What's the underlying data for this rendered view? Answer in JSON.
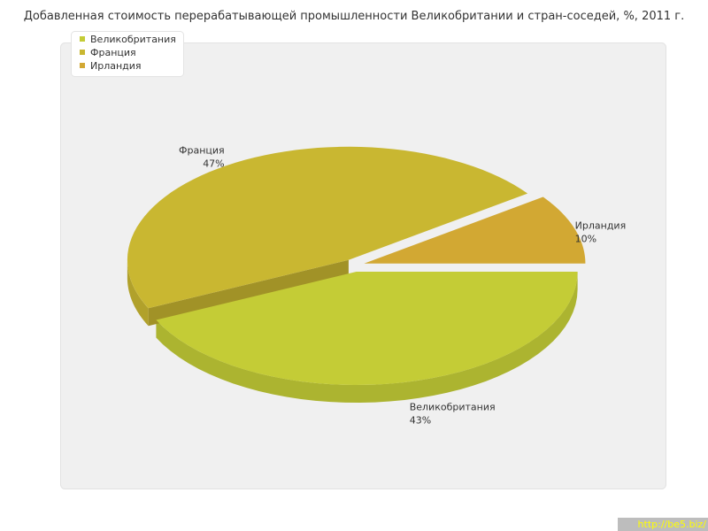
{
  "chart_data": {
    "type": "pie",
    "title": "Добавленная стоимость перерабатывающей промышленности Великобритании и стран-соседей, %, 2011 г.",
    "categories": [
      "Ирландия",
      "Франция",
      "Великобритания"
    ],
    "values": [
      10,
      47,
      43
    ],
    "value_labels": [
      "10%",
      "47%",
      "43%"
    ],
    "colors": [
      "#d2a833",
      "#c9b731",
      "#c4cc36"
    ],
    "legend_order": [
      2,
      1,
      0
    ],
    "legend": "top-left",
    "watermark": "http://be5.biz/"
  }
}
